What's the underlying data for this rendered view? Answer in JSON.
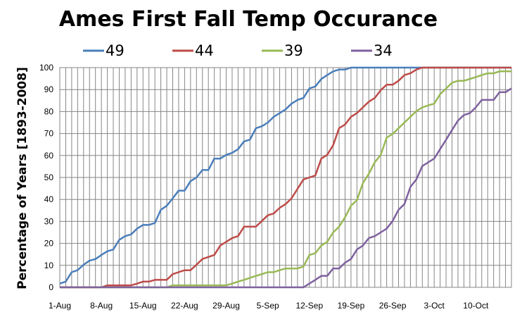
{
  "chart_data": {
    "type": "line",
    "title": "Ames First Fall Temp Occurance",
    "xlabel": "",
    "ylabel": "Percentage of Years [1893-2008]",
    "ylim": [
      0,
      100
    ],
    "yticks": [
      0,
      10,
      20,
      30,
      40,
      50,
      60,
      70,
      80,
      90,
      100
    ],
    "xlim": [
      0,
      76
    ],
    "xtick_positions": [
      0,
      7,
      14,
      21,
      28,
      35,
      42,
      49,
      56,
      63,
      70
    ],
    "xtick_labels": [
      "1-Aug",
      "8-Aug",
      "15-Aug",
      "22-Aug",
      "29-Aug",
      "5-Sep",
      "12-Sep",
      "19-Sep",
      "26-Sep",
      "3-Oct",
      "10-Oct"
    ],
    "grid": true,
    "legend_position": "top",
    "series": [
      {
        "name": "49",
        "color": "#4a7ebb",
        "x": [
          0,
          1,
          2,
          3,
          4,
          5,
          6,
          7,
          8,
          9,
          10,
          11,
          12,
          13,
          14,
          15,
          16,
          17,
          18,
          19,
          20,
          21,
          22,
          23,
          24,
          25,
          26,
          27,
          28,
          29,
          30,
          31,
          32,
          33,
          34,
          35,
          36,
          37,
          38,
          39,
          40,
          41,
          42,
          43,
          44,
          45,
          46,
          47,
          48,
          49,
          76
        ],
        "values": [
          1.7,
          2.6,
          6.9,
          7.8,
          10.3,
          12.1,
          12.9,
          14.7,
          16.4,
          17.2,
          21.6,
          23.3,
          24.1,
          26.7,
          28.4,
          28.4,
          29.3,
          35.3,
          37.1,
          40.5,
          44.0,
          44.0,
          48.3,
          50.0,
          53.4,
          53.4,
          58.6,
          58.6,
          60.3,
          61.2,
          62.9,
          66.4,
          67.2,
          72.4,
          73.3,
          75.0,
          77.6,
          79.3,
          81.0,
          83.6,
          85.3,
          86.2,
          90.5,
          91.4,
          94.8,
          96.6,
          98.3,
          99.1,
          99.1,
          100,
          100
        ]
      },
      {
        "name": "44",
        "color": "#be4b48",
        "x": [
          0,
          7,
          8,
          12,
          13,
          14,
          15,
          16,
          17,
          18,
          19,
          20,
          21,
          22,
          23,
          24,
          25,
          26,
          27,
          28,
          29,
          30,
          31,
          32,
          33,
          34,
          35,
          36,
          37,
          38,
          39,
          40,
          41,
          42,
          43,
          44,
          45,
          46,
          47,
          48,
          49,
          50,
          51,
          52,
          53,
          54,
          55,
          56,
          57,
          58,
          59,
          60,
          61,
          76
        ],
        "values": [
          0,
          0,
          0.9,
          0.9,
          1.7,
          2.6,
          2.6,
          3.4,
          3.4,
          3.4,
          6.0,
          6.9,
          7.8,
          7.8,
          10.3,
          12.9,
          13.8,
          14.7,
          19.0,
          20.7,
          22.4,
          23.3,
          27.6,
          27.6,
          27.6,
          30.2,
          32.8,
          33.6,
          36.2,
          37.9,
          40.5,
          44.8,
          49.1,
          50.0,
          50.9,
          58.6,
          60.3,
          64.7,
          72.4,
          74.1,
          77.6,
          79.3,
          81.9,
          84.5,
          86.2,
          89.7,
          92.2,
          92.2,
          94.0,
          96.6,
          97.4,
          99.1,
          100,
          100
        ]
      },
      {
        "name": "39",
        "color": "#98b954",
        "x": [
          0,
          18,
          19,
          20,
          21,
          22,
          23,
          24,
          25,
          26,
          27,
          28,
          29,
          30,
          31,
          32,
          33,
          34,
          35,
          36,
          37,
          38,
          39,
          40,
          41,
          42,
          43,
          44,
          45,
          46,
          47,
          48,
          49,
          50,
          51,
          52,
          53,
          54,
          55,
          56,
          57,
          58,
          59,
          60,
          61,
          62,
          63,
          64,
          65,
          66,
          67,
          68,
          69,
          70,
          71,
          72,
          73,
          74,
          75,
          76
        ],
        "values": [
          0,
          0,
          0.9,
          0.9,
          0.9,
          0.9,
          0.9,
          0.9,
          0.9,
          0.9,
          0.9,
          0.9,
          1.7,
          2.6,
          3.4,
          4.3,
          5.2,
          6.0,
          6.9,
          6.9,
          7.8,
          8.6,
          8.6,
          8.6,
          9.5,
          14.7,
          15.5,
          19.0,
          20.7,
          25.0,
          27.6,
          31.9,
          37.1,
          39.7,
          47.4,
          51.7,
          56.9,
          60.3,
          68.1,
          69.8,
          72.4,
          75.0,
          77.6,
          80.2,
          81.9,
          82.8,
          83.6,
          87.9,
          90.5,
          93.1,
          94.0,
          94.0,
          94.8,
          95.7,
          96.6,
          97.4,
          97.4,
          98.3,
          98.3,
          98.3
        ]
      },
      {
        "name": "34",
        "color": "#7e619f",
        "x": [
          0,
          33,
          34,
          35,
          36,
          37,
          38,
          39,
          40,
          41,
          42,
          43,
          44,
          45,
          46,
          47,
          48,
          49,
          50,
          51,
          52,
          53,
          54,
          55,
          56,
          57,
          58,
          59,
          60,
          61,
          62,
          63,
          64,
          65,
          66,
          67,
          68,
          69,
          70,
          71,
          72,
          73,
          74,
          75,
          76
        ],
        "values": [
          0,
          0,
          0,
          0,
          0,
          0,
          0,
          0,
          0,
          0,
          1.7,
          3.4,
          5.2,
          5.2,
          8.6,
          8.6,
          11.2,
          12.9,
          17.2,
          19.0,
          22.4,
          23.3,
          25.0,
          26.7,
          30.2,
          35.3,
          37.9,
          45.7,
          49.1,
          55.2,
          56.9,
          58.6,
          62.9,
          67.2,
          71.6,
          75.9,
          78.4,
          79.3,
          81.9,
          85.3,
          85.3,
          85.3,
          88.8,
          88.8,
          90.5
        ]
      }
    ]
  }
}
